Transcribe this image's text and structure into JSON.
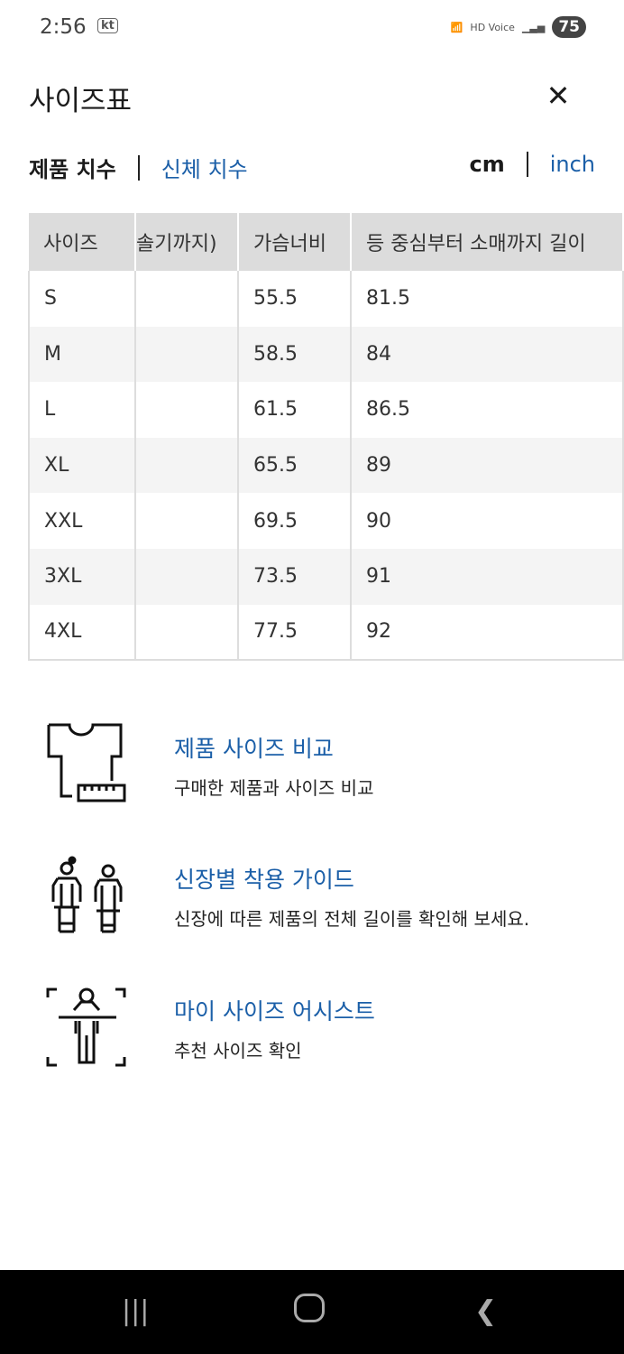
{
  "status_bar": {
    "time": "2:56",
    "carrier": "kt",
    "hd_voice": "HD Voice",
    "battery": "75"
  },
  "header": {
    "title": "사이즈표",
    "close_icon": "close-icon"
  },
  "tabs": {
    "product": "제품 치수",
    "body": "신체 치수"
  },
  "units": {
    "cm": "cm",
    "inch": "inch"
  },
  "table": {
    "headers": [
      "사이즈",
      "솔기까지)",
      "가슴너비",
      "등 중심부터 소매까지 길이"
    ],
    "rows": [
      [
        "S",
        "",
        "55.5",
        "81.5"
      ],
      [
        "M",
        "",
        "58.5",
        "84"
      ],
      [
        "L",
        "",
        "61.5",
        "86.5"
      ],
      [
        "XL",
        "",
        "65.5",
        "89"
      ],
      [
        "XXL",
        "",
        "69.5",
        "90"
      ],
      [
        "3XL",
        "",
        "73.5",
        "91"
      ],
      [
        "4XL",
        "",
        "77.5",
        "92"
      ]
    ]
  },
  "features": [
    {
      "title": "제품 사이즈 비교",
      "desc": "구매한 제품과 사이즈 비교",
      "icon": "shirt-ruler-icon"
    },
    {
      "title": "신장별 착용 가이드",
      "desc": "신장에 따른 제품의 전체 길이를 확인해 보세요.",
      "icon": "people-height-icon"
    },
    {
      "title": "마이 사이즈 어시스트",
      "desc": "추천 사이즈 확인",
      "icon": "body-scan-icon"
    }
  ],
  "colors": {
    "accent": "#1b5fa8",
    "header_bg": "#dcdcdc",
    "stripe": "#f4f4f4"
  }
}
